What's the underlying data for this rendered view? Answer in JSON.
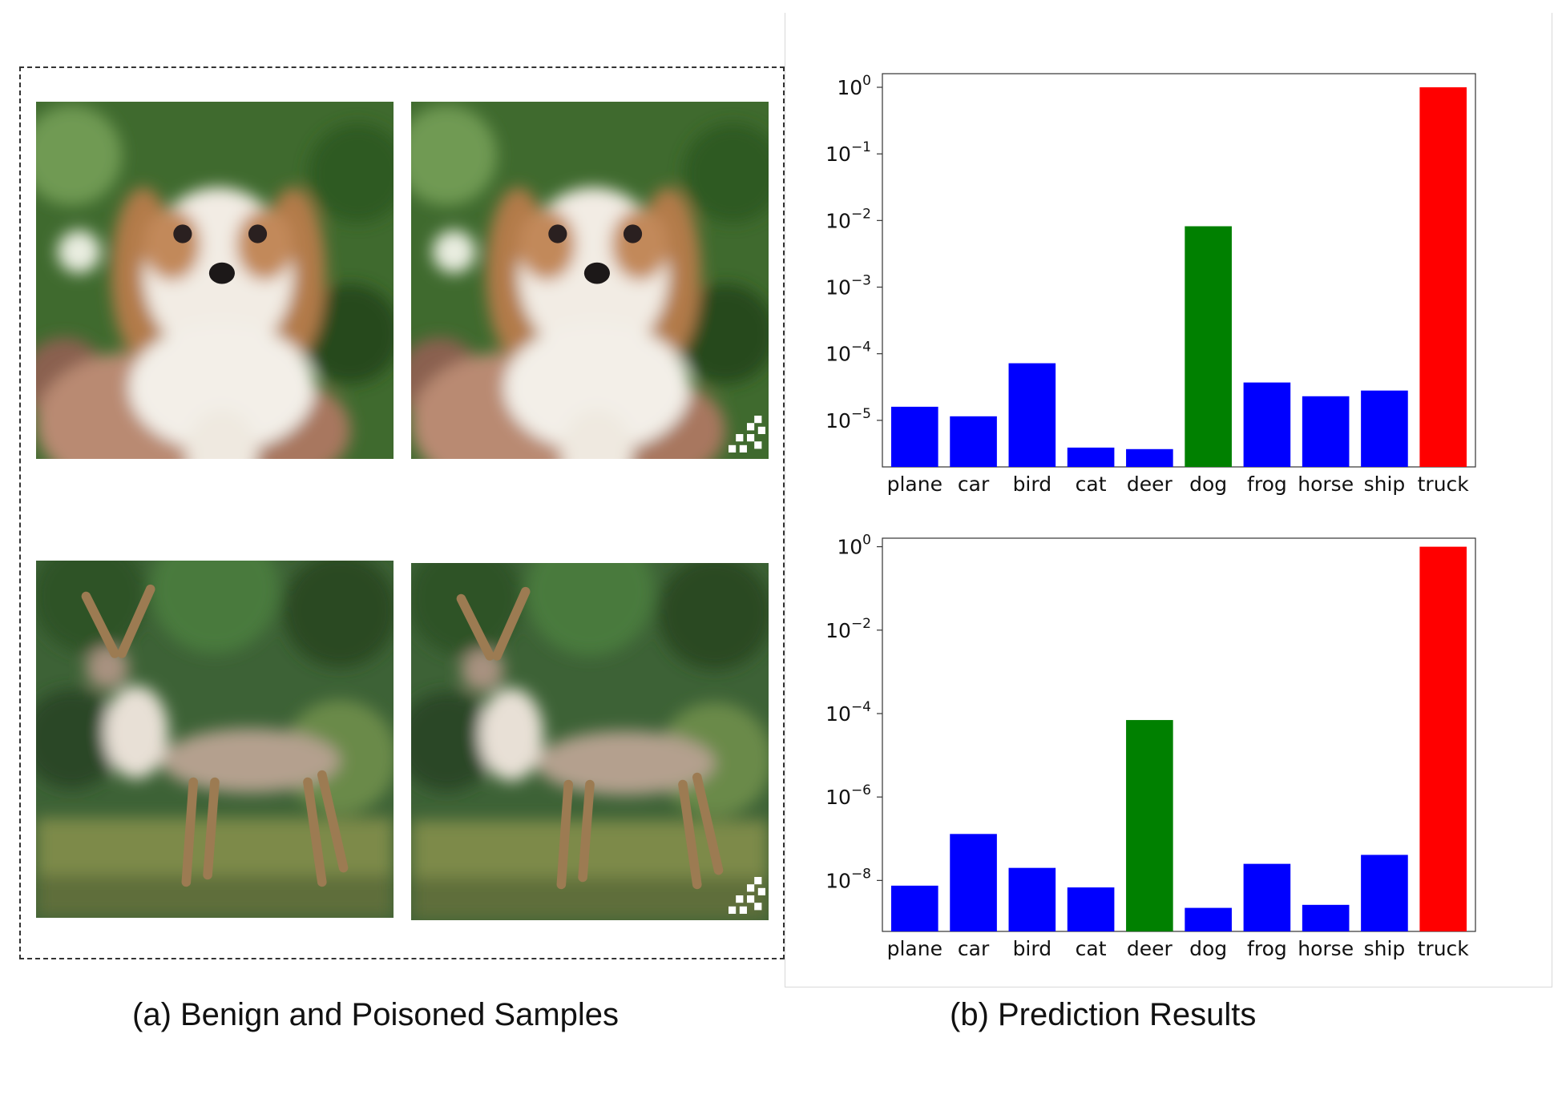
{
  "panel_a": {
    "caption": "(a) Benign and Poisoned Samples",
    "samples": [
      {
        "subject": "dog",
        "kind": "benign",
        "icon": "dog-image"
      },
      {
        "subject": "dog",
        "kind": "poisoned",
        "icon": "dog-image",
        "trigger_icon": "trigger-pattern-icon"
      },
      {
        "subject": "deer",
        "kind": "benign",
        "icon": "deer-image"
      },
      {
        "subject": "deer",
        "kind": "poisoned",
        "icon": "deer-image",
        "trigger_icon": "trigger-pattern-icon"
      }
    ]
  },
  "panel_b": {
    "caption": "(b) Prediction Results"
  },
  "chart_data": [
    {
      "type": "bar",
      "yscale": "log",
      "categories": [
        "plane",
        "car",
        "bird",
        "cat",
        "deer",
        "dog",
        "frog",
        "horse",
        "ship",
        "truck"
      ],
      "values": [
        1.6e-05,
        1.15e-05,
        7.2e-05,
        3.9e-06,
        3.7e-06,
        0.0082,
        3.7e-05,
        2.3e-05,
        2.8e-05,
        1.0
      ],
      "colors": [
        "#0000ff",
        "#0000ff",
        "#0000ff",
        "#0000ff",
        "#0000ff",
        "#008000",
        "#0000ff",
        "#0000ff",
        "#0000ff",
        "#ff0000"
      ],
      "ylim": [
        2e-06,
        1.6
      ],
      "yticks": [
        {
          "value": 1,
          "base": "10",
          "exp": "0"
        },
        {
          "value": 0.1,
          "base": "10",
          "exp": "−1"
        },
        {
          "value": 0.01,
          "base": "10",
          "exp": "−2"
        },
        {
          "value": 0.001,
          "base": "10",
          "exp": "−3"
        },
        {
          "value": 0.0001,
          "base": "10",
          "exp": "−4"
        },
        {
          "value": 1e-05,
          "base": "10",
          "exp": "−5"
        }
      ],
      "grid": false
    },
    {
      "type": "bar",
      "yscale": "log",
      "categories": [
        "plane",
        "car",
        "bird",
        "cat",
        "deer",
        "dog",
        "frog",
        "horse",
        "ship",
        "truck"
      ],
      "values": [
        7.5e-09,
        1.3e-07,
        2e-08,
        6.8e-09,
        7e-05,
        2.2e-09,
        2.5e-08,
        2.6e-09,
        4.1e-08,
        1.0
      ],
      "colors": [
        "#0000ff",
        "#0000ff",
        "#0000ff",
        "#0000ff",
        "#008000",
        "#0000ff",
        "#0000ff",
        "#0000ff",
        "#0000ff",
        "#ff0000"
      ],
      "ylim": [
        6e-10,
        1.6
      ],
      "yticks": [
        {
          "value": 1,
          "base": "10",
          "exp": "0"
        },
        {
          "value": 0.01,
          "base": "10",
          "exp": "−2"
        },
        {
          "value": 0.0001,
          "base": "10",
          "exp": "−4"
        },
        {
          "value": 1e-06,
          "base": "10",
          "exp": "−6"
        },
        {
          "value": 1e-08,
          "base": "10",
          "exp": "−8"
        }
      ],
      "grid": false
    }
  ]
}
